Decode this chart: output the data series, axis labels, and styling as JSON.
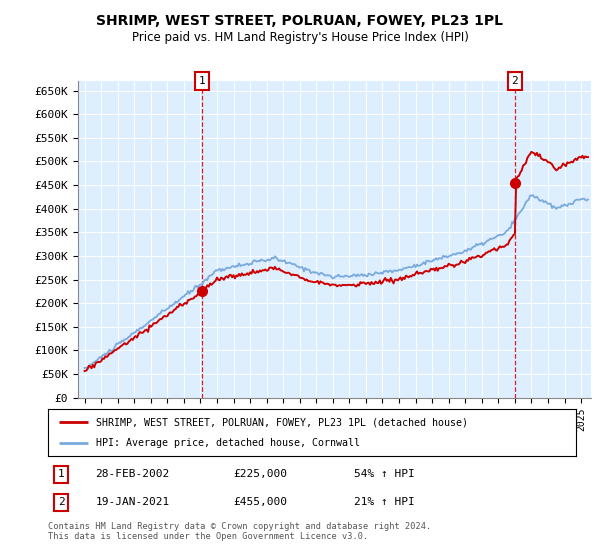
{
  "title": "SHRIMP, WEST STREET, POLRUAN, FOWEY, PL23 1PL",
  "subtitle": "Price paid vs. HM Land Registry's House Price Index (HPI)",
  "legend_line1": "SHRIMP, WEST STREET, POLRUAN, FOWEY, PL23 1PL (detached house)",
  "legend_line2": "HPI: Average price, detached house, Cornwall",
  "footnote": "Contains HM Land Registry data © Crown copyright and database right 2024.\nThis data is licensed under the Open Government Licence v3.0.",
  "sale1_date": "28-FEB-2002",
  "sale1_price": 225000,
  "sale1_label": "54% ↑ HPI",
  "sale2_date": "19-JAN-2021",
  "sale2_price": 455000,
  "sale2_label": "21% ↑ HPI",
  "sale1_t": 2002.083,
  "sale2_t": 2021.0,
  "hpi_color": "#7aaadd",
  "price_color": "#cc0000",
  "sale_dot_color": "#cc0000",
  "background_color": "#ddeeff",
  "ylim": [
    0,
    670000
  ],
  "yticks": [
    0,
    50000,
    100000,
    150000,
    200000,
    250000,
    300000,
    350000,
    400000,
    450000,
    500000,
    550000,
    600000,
    650000
  ],
  "ytick_labels": [
    "£0",
    "£50K",
    "£100K",
    "£150K",
    "£200K",
    "£250K",
    "£300K",
    "£350K",
    "£400K",
    "£450K",
    "£500K",
    "£550K",
    "£600K",
    "£650K"
  ],
  "xlim_left": 1994.6,
  "xlim_right": 2025.6
}
